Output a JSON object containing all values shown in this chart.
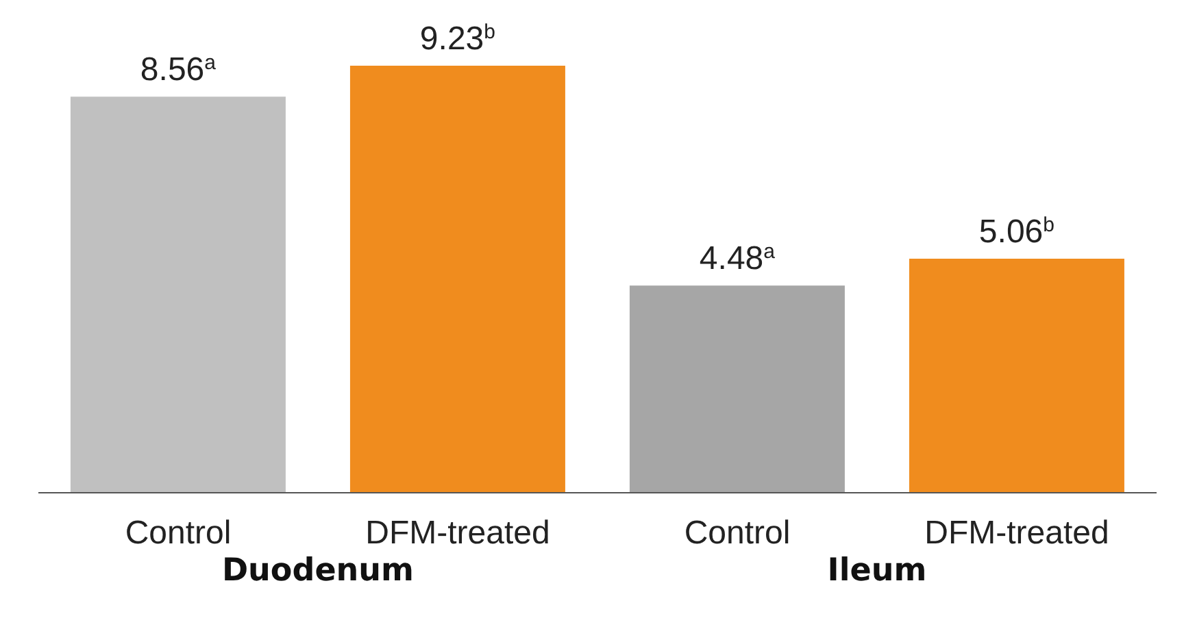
{
  "chart_data": {
    "type": "bar",
    "categories": [
      "Control",
      "DFM-treated",
      "Control",
      "DFM-treated"
    ],
    "values": [
      8.56,
      9.23,
      4.48,
      5.06
    ],
    "colors": [
      "#c0c0c0",
      "#f08c1e",
      "#a6a6a6",
      "#f08c1e"
    ],
    "value_labels": [
      "8.56$^{a}$",
      "9.23$^{b}$",
      "4.48$^{a}$",
      "5.06$^{b}$"
    ],
    "annotations": [
      "Duodenum",
      "Ileum"
    ]
  }
}
